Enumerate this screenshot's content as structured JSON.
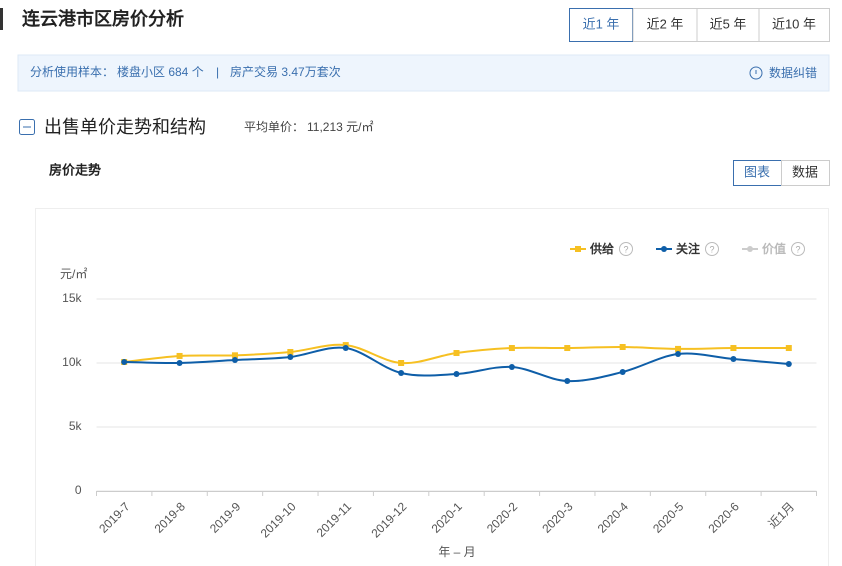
{
  "header": {
    "title": "连云港市区房价分析",
    "tabs": [
      "近1 年",
      "近2 年",
      "近5 年",
      "近10 年"
    ]
  },
  "info": {
    "label": "分析使用样本：",
    "sample": "楼盘小区 684 个",
    "separator": "|",
    "trade": "房产交易 3.47万套次",
    "report": "数据纠错"
  },
  "section": {
    "title": "出售单价走势和结构",
    "avg_label": "平均单价：",
    "avg_value": "11,213 元/㎡",
    "toggles": [
      "图表",
      "数据"
    ]
  },
  "chart_data": {
    "type": "line",
    "title": "房价走势",
    "y_label": "元/㎡",
    "x_label": "年 – 月",
    "categories": [
      "2019-7",
      "2019-8",
      "2019-9",
      "2019-10",
      "2019-11",
      "2019-12",
      "2020-1",
      "2020-2",
      "2020-3",
      "2020-4",
      "2020-5",
      "2020-6",
      "近1月"
    ],
    "series": [
      {
        "name": "供给",
        "color": "#f6c022",
        "marker": "square",
        "values": [
          10080,
          10550,
          10600,
          10860,
          11400,
          10000,
          10780,
          11170,
          11170,
          11250,
          11100,
          11170,
          11170
        ]
      },
      {
        "name": "关注",
        "color": "#0e5ea8",
        "marker": "circle",
        "values": [
          10080,
          10000,
          10230,
          10470,
          11170,
          9220,
          9140,
          9690,
          8590,
          9300,
          10700,
          10310,
          9920
        ]
      },
      {
        "name": "价值",
        "color": "#cccccc",
        "marker": "circle",
        "values": [
          null,
          null,
          null,
          null,
          null,
          null,
          null,
          null,
          null,
          null,
          null,
          null,
          null
        ]
      }
    ],
    "ylim": [
      0,
      15000
    ],
    "yticks": [
      0,
      {
        "value": 5000,
        "label": "5k"
      },
      {
        "value": 10000,
        "label": "10k"
      },
      {
        "value": 15000,
        "label": "15k"
      }
    ],
    "grid": true
  }
}
